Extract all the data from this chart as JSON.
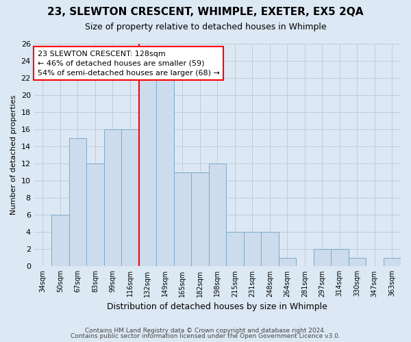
{
  "title": "23, SLEWTON CRESCENT, WHIMPLE, EXETER, EX5 2QA",
  "subtitle": "Size of property relative to detached houses in Whimple",
  "xlabel": "Distribution of detached houses by size in Whimple",
  "ylabel": "Number of detached properties",
  "footer_line1": "Contains HM Land Registry data © Crown copyright and database right 2024.",
  "footer_line2": "Contains public sector information licensed under the Open Government Licence v3.0.",
  "categories": [
    "34sqm",
    "50sqm",
    "67sqm",
    "83sqm",
    "99sqm",
    "116sqm",
    "132sqm",
    "149sqm",
    "165sqm",
    "182sqm",
    "198sqm",
    "215sqm",
    "231sqm",
    "248sqm",
    "264sqm",
    "281sqm",
    "297sqm",
    "314sqm",
    "330sqm",
    "347sqm",
    "363sqm"
  ],
  "values": [
    0,
    6,
    15,
    12,
    16,
    16,
    22,
    22,
    11,
    11,
    12,
    4,
    4,
    4,
    1,
    0,
    2,
    2,
    1,
    0,
    1
  ],
  "bar_color": "#ccdcec",
  "bar_edge_color": "#7aaaca",
  "grid_color": "#c0ccd8",
  "background_color": "#dce8f4",
  "plot_bg_color": "#dce8f4",
  "annotation_text": "23 SLEWTON CRESCENT: 128sqm\n← 46% of detached houses are smaller (59)\n54% of semi-detached houses are larger (68) →",
  "vline_index": 6,
  "ylim": [
    0,
    26
  ],
  "yticks": [
    0,
    2,
    4,
    6,
    8,
    10,
    12,
    14,
    16,
    18,
    20,
    22,
    24,
    26
  ],
  "annotation_box_color": "white",
  "annotation_box_edge": "red",
  "vline_color": "red",
  "title_fontsize": 11,
  "subtitle_fontsize": 9
}
